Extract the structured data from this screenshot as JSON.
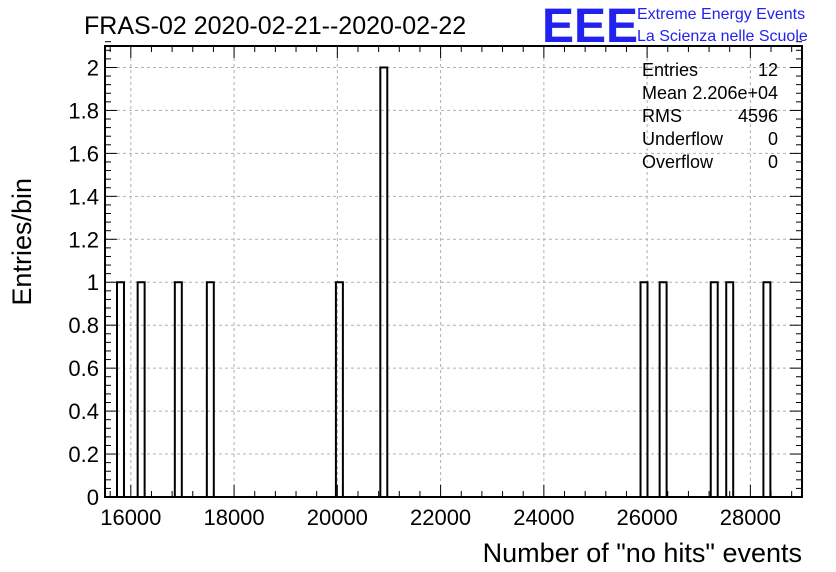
{
  "chart_data": {
    "type": "bar",
    "title": "FRAS-02 2020-02-21--2020-02-22",
    "xlabel": "Number of \"no hits\" events",
    "ylabel": "Entries/bin",
    "xlim": [
      15500,
      29000
    ],
    "ylim": [
      0,
      2.1
    ],
    "bin_width": 135,
    "xticks": [
      16000,
      18000,
      20000,
      22000,
      24000,
      26000,
      28000
    ],
    "yticks": [
      0,
      0.2,
      0.4,
      0.6,
      0.8,
      1,
      1.2,
      1.4,
      1.6,
      1.8,
      2
    ],
    "ytick_labels": [
      "0",
      "0.2",
      "0.4",
      "0.6",
      "0.8",
      "1",
      "1.2",
      "1.4",
      "1.6",
      "1.8",
      "2"
    ],
    "bins": [
      {
        "x": 15800,
        "y": 1
      },
      {
        "x": 16200,
        "y": 1
      },
      {
        "x": 16920,
        "y": 1
      },
      {
        "x": 17540,
        "y": 1
      },
      {
        "x": 20040,
        "y": 1
      },
      {
        "x": 20900,
        "y": 2
      },
      {
        "x": 25940,
        "y": 1
      },
      {
        "x": 26310,
        "y": 1
      },
      {
        "x": 27300,
        "y": 1
      },
      {
        "x": 27600,
        "y": 1
      },
      {
        "x": 28320,
        "y": 1
      }
    ],
    "grid": true,
    "stats": [
      {
        "label": "Entries",
        "value": "12"
      },
      {
        "label": "Mean",
        "value": "2.206e+04"
      },
      {
        "label": "RMS",
        "value": "4596"
      },
      {
        "label": "Underflow",
        "value": "0"
      },
      {
        "label": "Overflow",
        "value": "0"
      }
    ],
    "colors": {
      "bar_line": "#000000",
      "grid": "#b0b0b0",
      "logo": "#2222ee"
    }
  },
  "logo": {
    "mark": "EEE",
    "line1": "Extreme Energy Events",
    "line2": "La Scienza nelle Scuole"
  }
}
